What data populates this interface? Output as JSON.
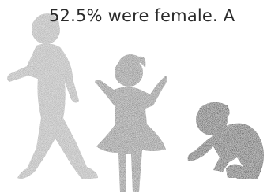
{
  "text": "52.5% were female. A"
}
